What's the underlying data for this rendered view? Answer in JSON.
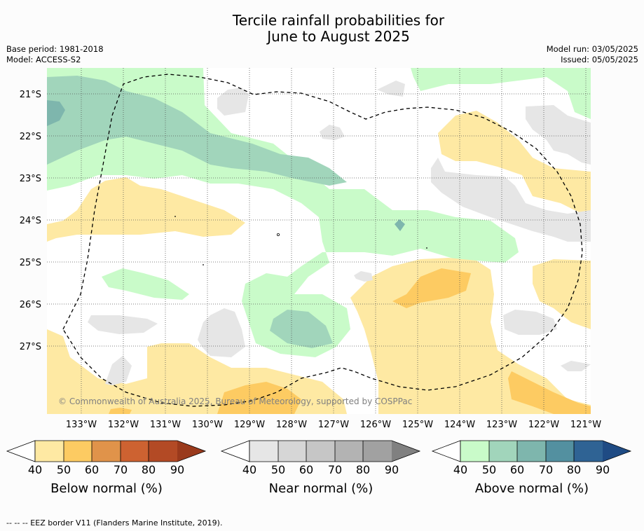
{
  "title_line1": "Tercile rainfall probabilities for",
  "title_line2": "June to August 2025",
  "base_period": "Base period: 1981-2018",
  "model": "Model: ACCESS-S2",
  "model_run": "Model run: 03/05/2025",
  "issued": "Issued: 05/05/2025",
  "lat_labels": [
    "21°S",
    "22°S",
    "23°S",
    "24°S",
    "25°S",
    "26°S",
    "27°S"
  ],
  "lon_labels": [
    "133°W",
    "132°W",
    "131°W",
    "130°W",
    "129°W",
    "128°W",
    "127°W",
    "126°W",
    "125°W",
    "124°W",
    "123°W",
    "122°W",
    "121°W"
  ],
  "copyright": "© Commonwealth of Australia 2025, Bureau of Meteorology, supported by COSPPac",
  "colorbars": [
    {
      "label": "Below normal (%)",
      "ticks": [
        "40",
        "50",
        "60",
        "70",
        "80",
        "90"
      ],
      "colors": [
        "#fee9a3",
        "#fdcb62",
        "#e0934a",
        "#cd6231",
        "#b34a25",
        "#9a3a1c"
      ]
    },
    {
      "label": "Near normal (%)",
      "ticks": [
        "40",
        "50",
        "60",
        "70",
        "80",
        "90"
      ],
      "colors": [
        "#e6e6e6",
        "#d6d6d6",
        "#c6c6c6",
        "#b3b3b3",
        "#a1a1a1",
        "#808080"
      ]
    },
    {
      "label": "Above normal (%)",
      "ticks": [
        "40",
        "50",
        "60",
        "70",
        "80",
        "90"
      ],
      "colors": [
        "#c9fbc9",
        "#a1d5bb",
        "#7eb6ad",
        "#5390a0",
        "#2f6394",
        "#1f4b84"
      ]
    }
  ],
  "footer": "--  --  -- EEZ border V11 (Flanders Marine Institute, 2019)."
}
